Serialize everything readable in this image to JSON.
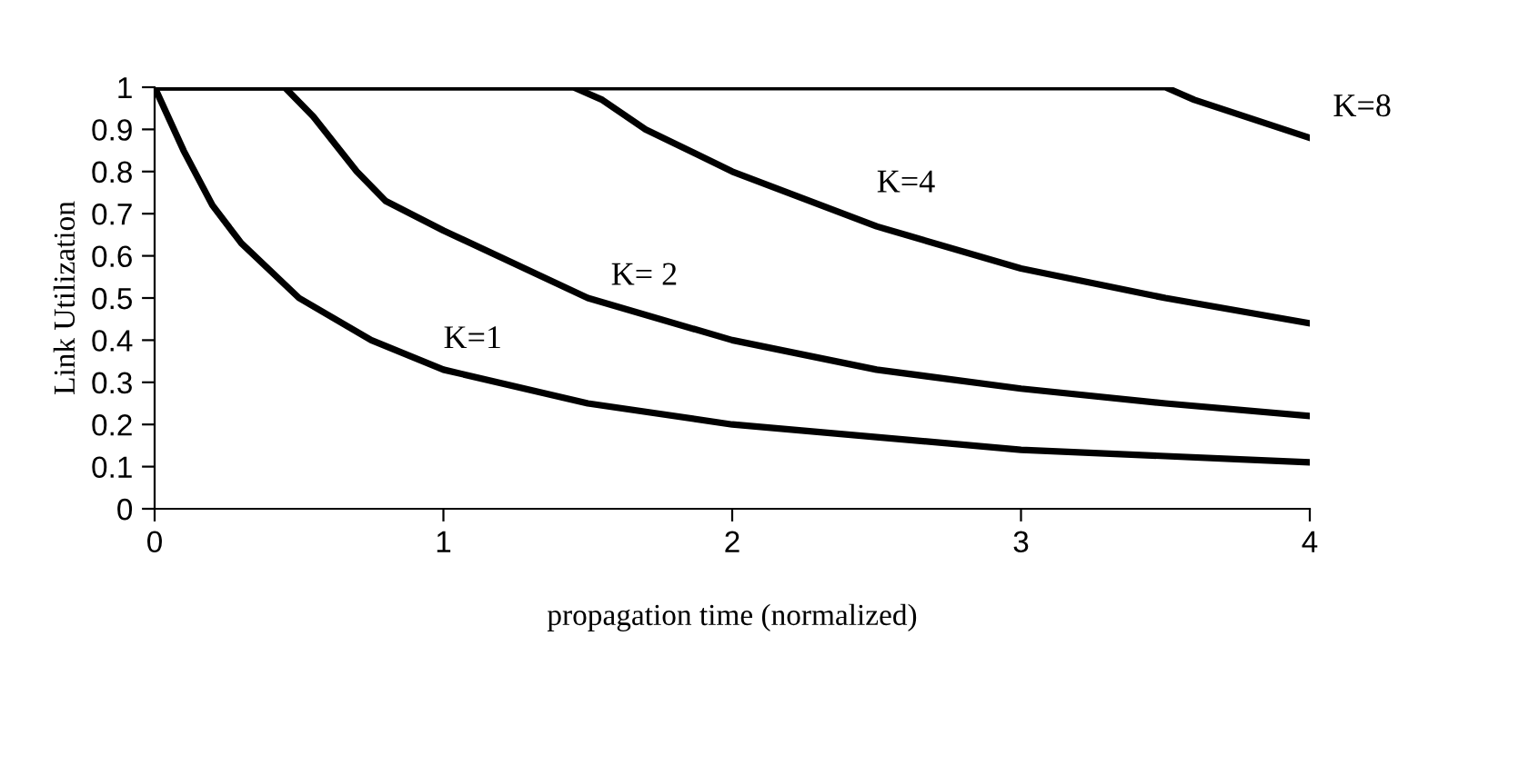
{
  "chart_data": {
    "type": "line",
    "xlabel": "propagation time (normalized)",
    "ylabel": "Link Utilization",
    "xlim": [
      0,
      4
    ],
    "xticks": [
      0,
      1,
      2,
      3,
      4
    ],
    "ylim": [
      0,
      1
    ],
    "yticks": [
      0,
      0.1,
      0.2,
      0.3,
      0.4,
      0.5,
      0.6,
      0.7,
      0.8,
      0.9,
      1
    ],
    "grid": false,
    "legend": false,
    "marker": "none",
    "line_style": "solid",
    "series": [
      {
        "name": "K=1",
        "color": "#000000",
        "x": [
          0,
          0.1,
          0.2,
          0.3,
          0.5,
          0.75,
          1,
          1.5,
          2,
          2.5,
          3,
          3.5,
          4
        ],
        "values": [
          1,
          0.85,
          0.72,
          0.63,
          0.5,
          0.4,
          0.33,
          0.25,
          0.2,
          0.17,
          0.14,
          0.125,
          0.11
        ]
      },
      {
        "name": "K= 2",
        "color": "#000000",
        "x": [
          0,
          0.45,
          0.55,
          0.7,
          0.8,
          1,
          1.5,
          2,
          2.5,
          3,
          3.5,
          4
        ],
        "values": [
          1,
          1,
          0.93,
          0.8,
          0.73,
          0.66,
          0.5,
          0.4,
          0.33,
          0.285,
          0.25,
          0.22
        ]
      },
      {
        "name": "K=4",
        "color": "#000000",
        "x": [
          0,
          1.45,
          1.55,
          1.7,
          2,
          2.5,
          3,
          3.5,
          4
        ],
        "values": [
          1,
          1,
          0.97,
          0.9,
          0.8,
          0.67,
          0.57,
          0.5,
          0.44
        ]
      },
      {
        "name": "K=8",
        "color": "#000000",
        "x": [
          0,
          3.5,
          3.6,
          4
        ],
        "values": [
          1,
          1,
          0.97,
          0.88
        ]
      }
    ]
  }
}
